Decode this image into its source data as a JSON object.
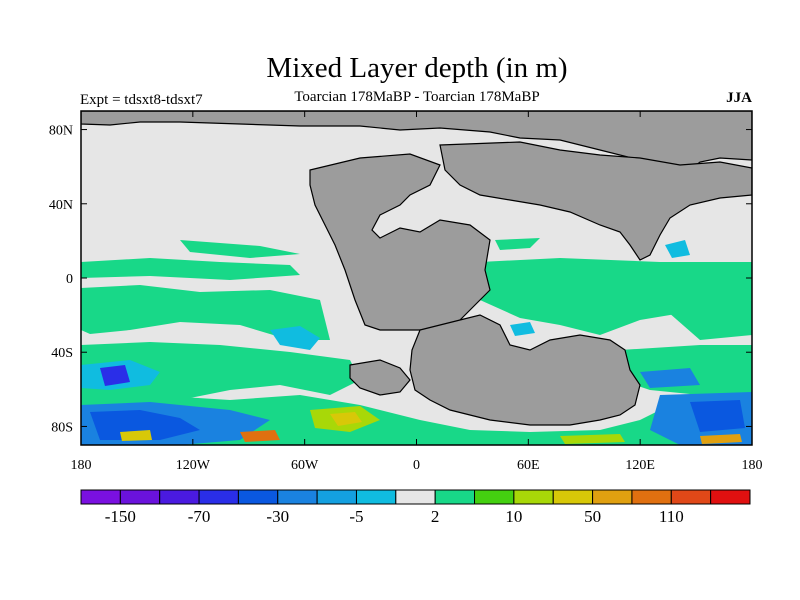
{
  "title": "Mixed Layer depth (in m)",
  "subtitle_left": "Expt = tdsxt8-tdsxt7",
  "subtitle_center": "Toarcian 178MaBP - Toarcian 178MaBP",
  "subtitle_right": "JJA",
  "map": {
    "lon_range": [
      -180,
      180
    ],
    "lat_range": [
      -90,
      90
    ],
    "x_ticks": [
      "180",
      "120W",
      "60W",
      "0",
      "60E",
      "120E",
      "180"
    ],
    "y_ticks": [
      "80N",
      "40N",
      "0",
      "40S",
      "80S"
    ],
    "land_color": "#9c9c9c",
    "ocean_color": "#e6e6e6"
  },
  "colorbar": {
    "colors": [
      "#7a10e0",
      "#6a12dc",
      "#4a1ae0",
      "#2a2ee8",
      "#0a58e0",
      "#1a82e0",
      "#14a0e0",
      "#10bce0",
      "#e6e6e6",
      "#18d888",
      "#44d010",
      "#a8d808",
      "#d8c808",
      "#e0a010",
      "#e07010",
      "#e04818",
      "#e01010"
    ],
    "labels": [
      "-150",
      "-70",
      "-30",
      "-5",
      "2",
      "10",
      "50",
      "110"
    ]
  }
}
